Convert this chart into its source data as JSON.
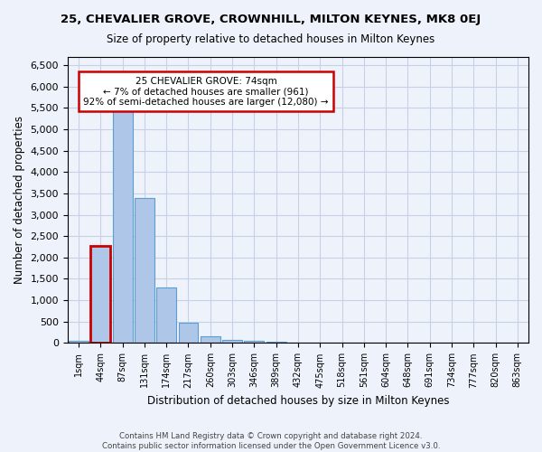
{
  "title": "25, CHEVALIER GROVE, CROWNHILL, MILTON KEYNES, MK8 0EJ",
  "subtitle": "Size of property relative to detached houses in Milton Keynes",
  "xlabel": "Distribution of detached houses by size in Milton Keynes",
  "ylabel": "Number of detached properties",
  "footer_line1": "Contains HM Land Registry data © Crown copyright and database right 2024.",
  "footer_line2": "Contains public sector information licensed under the Open Government Licence v3.0.",
  "annotation_line1": "25 CHEVALIER GROVE: 74sqm",
  "annotation_line2": "← 7% of detached houses are smaller (961)",
  "annotation_line3": "92% of semi-detached houses are larger (12,080) →",
  "bar_color": "#aec6e8",
  "bar_edge_color": "#5a9fd4",
  "highlight_color": "#cc0000",
  "background_color": "#eef2fb",
  "grid_color": "#c8d0e8",
  "bin_labels": [
    "1sqm",
    "44sqm",
    "87sqm",
    "131sqm",
    "174sqm",
    "217sqm",
    "260sqm",
    "303sqm",
    "346sqm",
    "389sqm",
    "432sqm",
    "475sqm",
    "518sqm",
    "561sqm",
    "604sqm",
    "648sqm",
    "691sqm",
    "734sqm",
    "777sqm",
    "820sqm",
    "863sqm"
  ],
  "bar_values": [
    60,
    2270,
    5430,
    3390,
    1290,
    480,
    160,
    75,
    55,
    40,
    0,
    0,
    0,
    0,
    0,
    0,
    0,
    0,
    0,
    0,
    0
  ],
  "highlight_bar_index": 1,
  "ylim": [
    0,
    6700
  ],
  "yticks": [
    0,
    500,
    1000,
    1500,
    2000,
    2500,
    3000,
    3500,
    4000,
    4500,
    5000,
    5500,
    6000,
    6500
  ]
}
